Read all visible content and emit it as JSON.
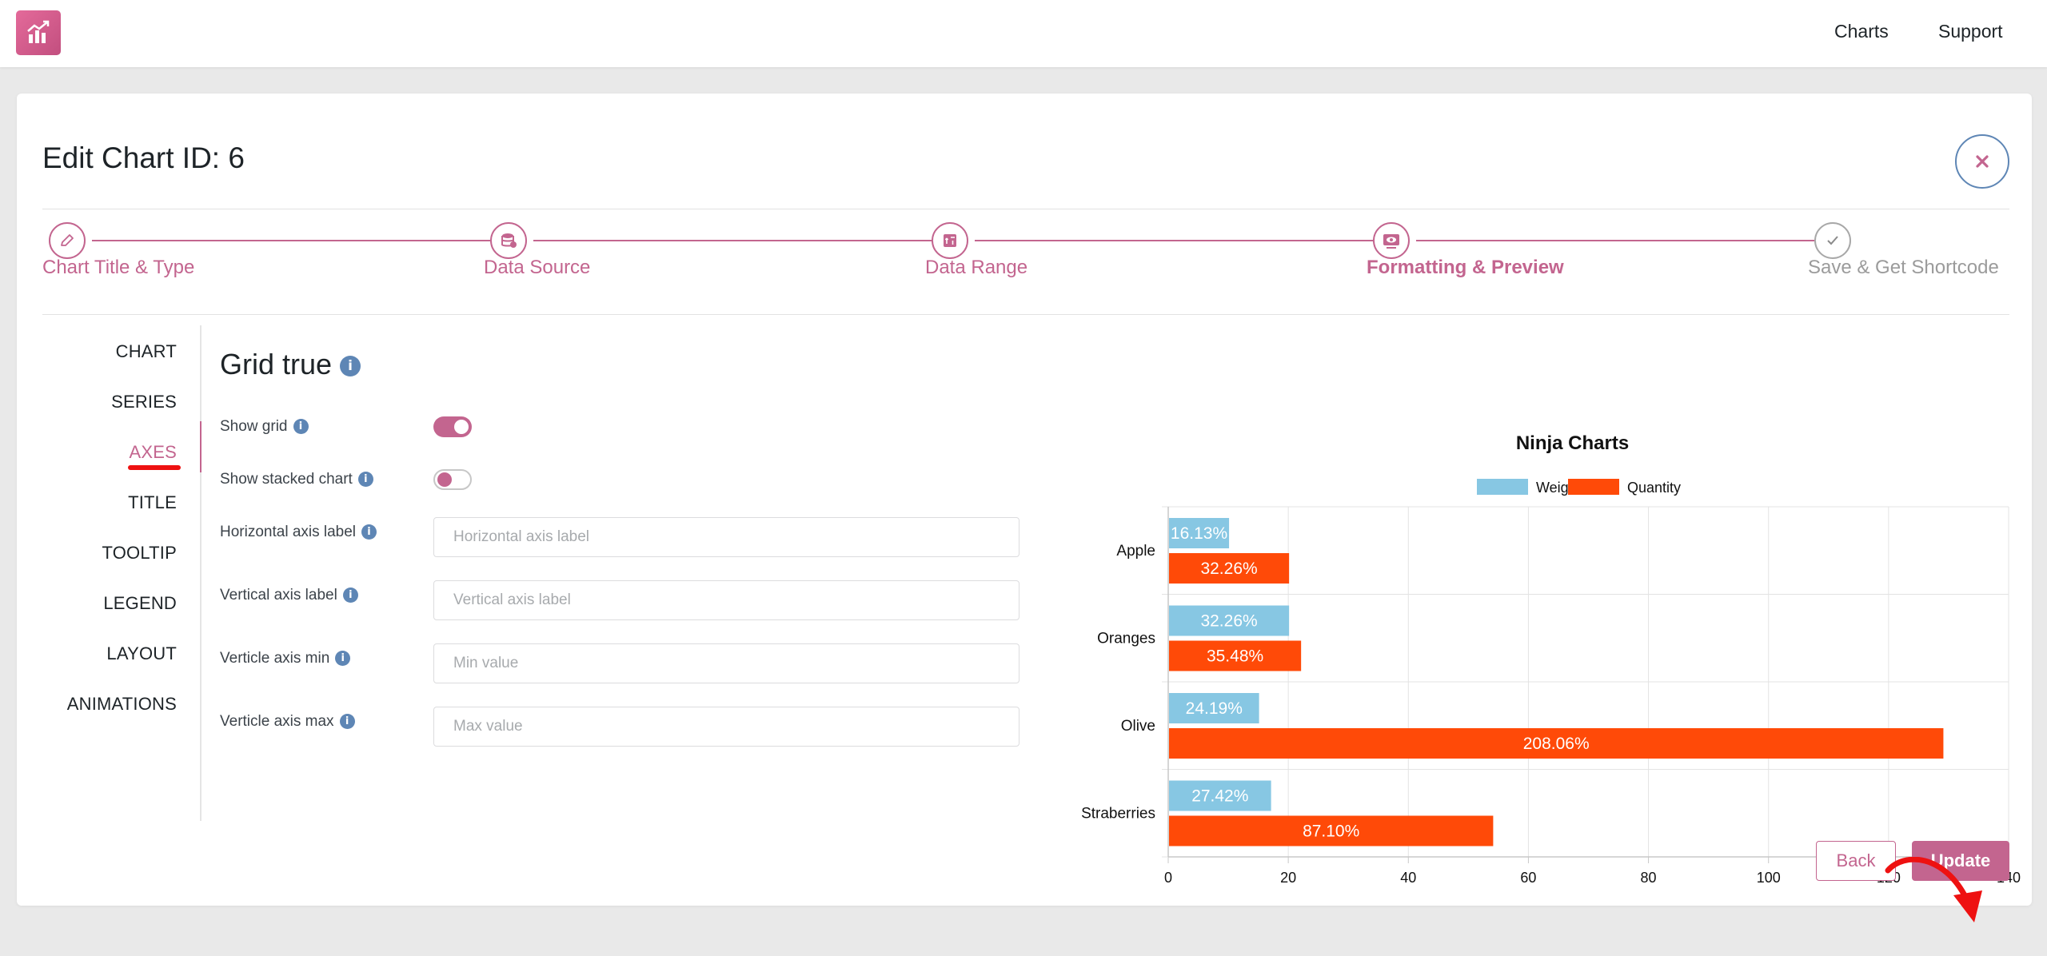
{
  "topbar": {
    "nav": [
      "Charts",
      "Support"
    ]
  },
  "page": {
    "title": "Edit Chart ID: 6",
    "close_icon": "close-icon"
  },
  "steps": [
    {
      "label": "Chart Title & Type",
      "icon": "pencil-icon",
      "state": "complete"
    },
    {
      "label": "Data Source",
      "icon": "database-icon",
      "state": "complete"
    },
    {
      "label": "Data Range",
      "icon": "range-icon",
      "state": "complete"
    },
    {
      "label": "Formatting & Preview",
      "icon": "preview-icon",
      "state": "active"
    },
    {
      "label": "Save & Get Shortcode",
      "icon": "check-icon",
      "state": "pending"
    }
  ],
  "side_tabs": [
    {
      "label": "CHART",
      "active": false
    },
    {
      "label": "SERIES",
      "active": false
    },
    {
      "label": "AXES",
      "active": true
    },
    {
      "label": "TITLE",
      "active": false
    },
    {
      "label": "TOOLTIP",
      "active": false
    },
    {
      "label": "LEGEND",
      "active": false
    },
    {
      "label": "LAYOUT",
      "active": false
    },
    {
      "label": "ANIMATIONS",
      "active": false
    }
  ],
  "form": {
    "section_title": "Grid true",
    "show_grid": {
      "label": "Show grid",
      "on": true
    },
    "show_stacked": {
      "label": "Show stacked chart",
      "on": false
    },
    "horizontal_axis_label": {
      "label": "Horizontal axis label",
      "placeholder": "Horizontal axis label",
      "value": ""
    },
    "vertical_axis_label": {
      "label": "Vertical axis label",
      "placeholder": "Vertical axis label",
      "value": ""
    },
    "vertical_axis_min": {
      "label": "Verticle axis min",
      "placeholder": "Min value",
      "value": ""
    },
    "vertical_axis_max": {
      "label": "Verticle axis max",
      "placeholder": "Max value",
      "value": ""
    }
  },
  "buttons": {
    "back": "Back",
    "update": "Update"
  },
  "colors": {
    "accent": "#c3658f",
    "info": "#5e86b5",
    "weight": "#87c7e3",
    "quantity": "#ff4a08",
    "annotation_arrow": "#ee1111"
  },
  "chart_data": {
    "type": "bar",
    "orientation": "horizontal",
    "title": "Ninja Charts",
    "categories": [
      "Apple",
      "Oranges",
      "Olive",
      "Straberries"
    ],
    "series": [
      {
        "name": "Weight",
        "values": [
          10,
          20,
          15,
          17
        ],
        "labels": [
          "16.13%",
          "32.26%",
          "24.19%",
          "27.42%"
        ]
      },
      {
        "name": "Quantity",
        "values": [
          20,
          22,
          129,
          54
        ],
        "labels": [
          "32.26%",
          "35.48%",
          "208.06%",
          "87.10%"
        ]
      }
    ],
    "xlim": [
      0,
      140
    ],
    "xticks": [
      "0",
      "20",
      "40",
      "60",
      "80",
      "100",
      "120",
      "140"
    ],
    "grid": true,
    "legend": "top"
  }
}
